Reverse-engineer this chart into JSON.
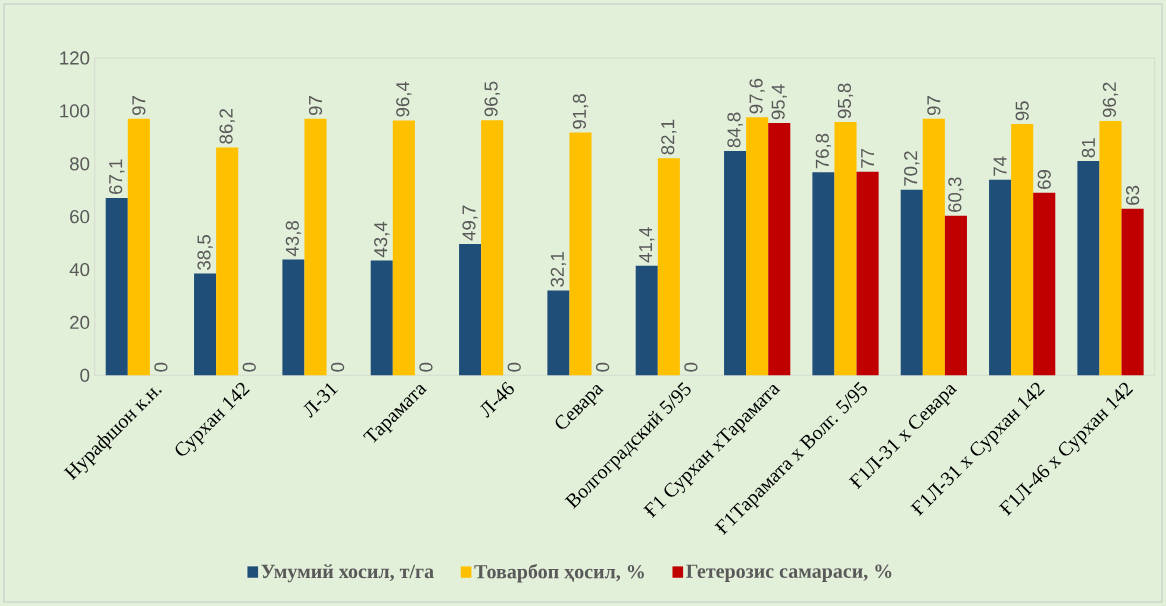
{
  "chart_data": {
    "type": "bar",
    "categories": [
      "Нурафшон к.н.",
      "Сурхан 142",
      "Л-31",
      "Тарамата",
      "Л-46",
      "Севара",
      "Волгоградский 5/95",
      "Ғ1 Сурхан хТарамата",
      "Ғ1Тарамата х Волг. 5/95",
      "Ғ1Л-31 х Севара",
      "Ғ1Л-31 х Сурхан 142",
      "Ғ1Л-46 х Сурхан 142"
    ],
    "series": [
      {
        "name": "Умумий хосил, т/га",
        "color": "#1f4e79",
        "values": [
          67.1,
          38.5,
          43.8,
          43.4,
          49.7,
          32.1,
          41.4,
          84.8,
          76.8,
          70.2,
          74,
          81
        ],
        "value_labels": [
          "67,1",
          "38,5",
          "43,8",
          "43,4",
          "49,7",
          "32,1",
          "41,4",
          "84,8",
          "76,8",
          "70,2",
          "74",
          "81"
        ]
      },
      {
        "name": "Товарбоп ҳосил, %",
        "color": "#ffc000",
        "values": [
          97,
          86.2,
          97,
          96.4,
          96.5,
          91.8,
          82.1,
          97.6,
          95.8,
          97,
          95,
          96.2
        ],
        "value_labels": [
          "97",
          "86,2",
          "97",
          "96,4",
          "96,5",
          "91,8",
          "82,1",
          "97,6",
          "95,8",
          "97",
          "95",
          "96,2"
        ]
      },
      {
        "name": "Гетерозис самараси, %",
        "color": "#c00000",
        "values": [
          0,
          0,
          0,
          0,
          0,
          0,
          0,
          95.4,
          77,
          60.3,
          69,
          63
        ],
        "value_labels": [
          "0",
          "0",
          "0",
          "0",
          "0",
          "0",
          "0",
          "95,4",
          "77",
          "60,3",
          "69",
          "63"
        ]
      }
    ],
    "ylim": [
      0,
      120
    ],
    "yticks": [
      0,
      20,
      40,
      60,
      80,
      100,
      120
    ],
    "legend": "bottom"
  }
}
